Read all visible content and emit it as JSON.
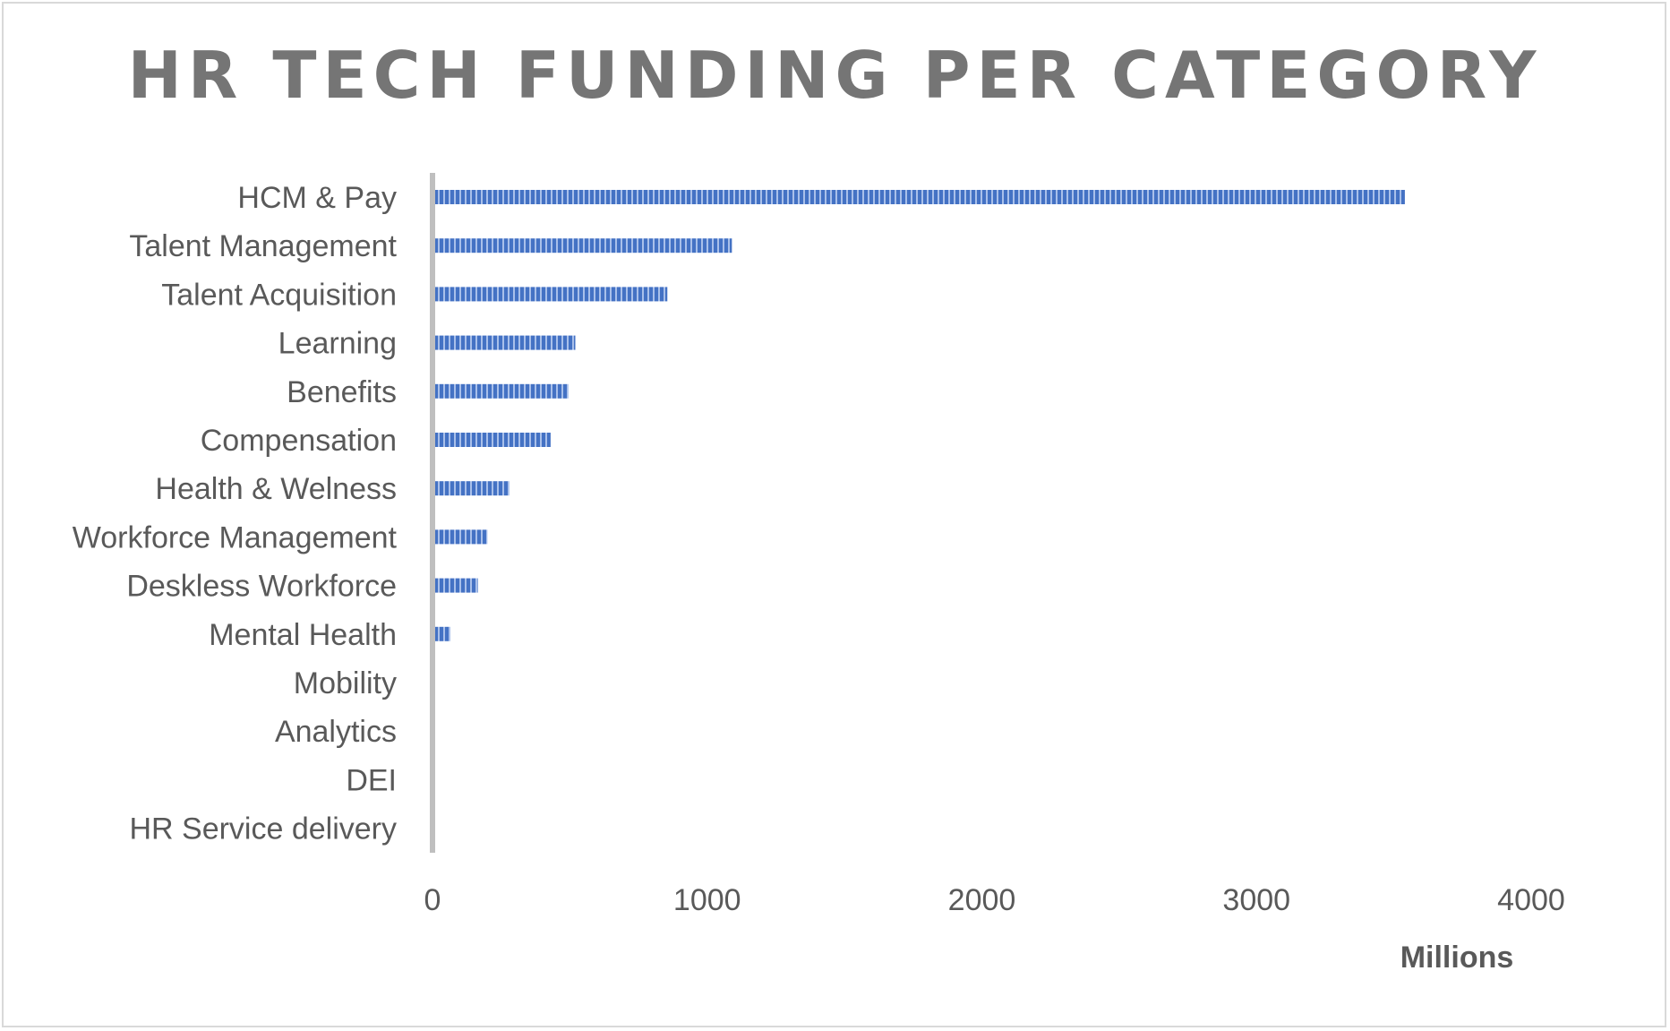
{
  "chart_data": {
    "type": "bar",
    "orientation": "horizontal",
    "title": "HR TECH FUNDING PER CATEGORY",
    "xlabel": "Millions",
    "ylabel": "",
    "categories": [
      "HCM & Pay",
      "Talent Management",
      "Talent Acquisition",
      "Learning",
      "Benefits",
      "Compensation",
      "Health & Welness",
      "Workforce Management",
      "Deskless Workforce",
      "Mental Health",
      "Mobility",
      "Analytics",
      "DEI",
      "HR Service delivery"
    ],
    "values": [
      3540,
      1090,
      855,
      520,
      495,
      430,
      280,
      200,
      165,
      65,
      8,
      6,
      2,
      1
    ],
    "xlim": [
      0,
      4000
    ],
    "xticks": [
      "0",
      "1000",
      "2000",
      "3000",
      "4000"
    ],
    "grid": false,
    "legend": "none",
    "bar_color": "#4472c4",
    "bar_stripe_color": "#a9c0ea",
    "axis_line_color": "#bfbfbf"
  }
}
